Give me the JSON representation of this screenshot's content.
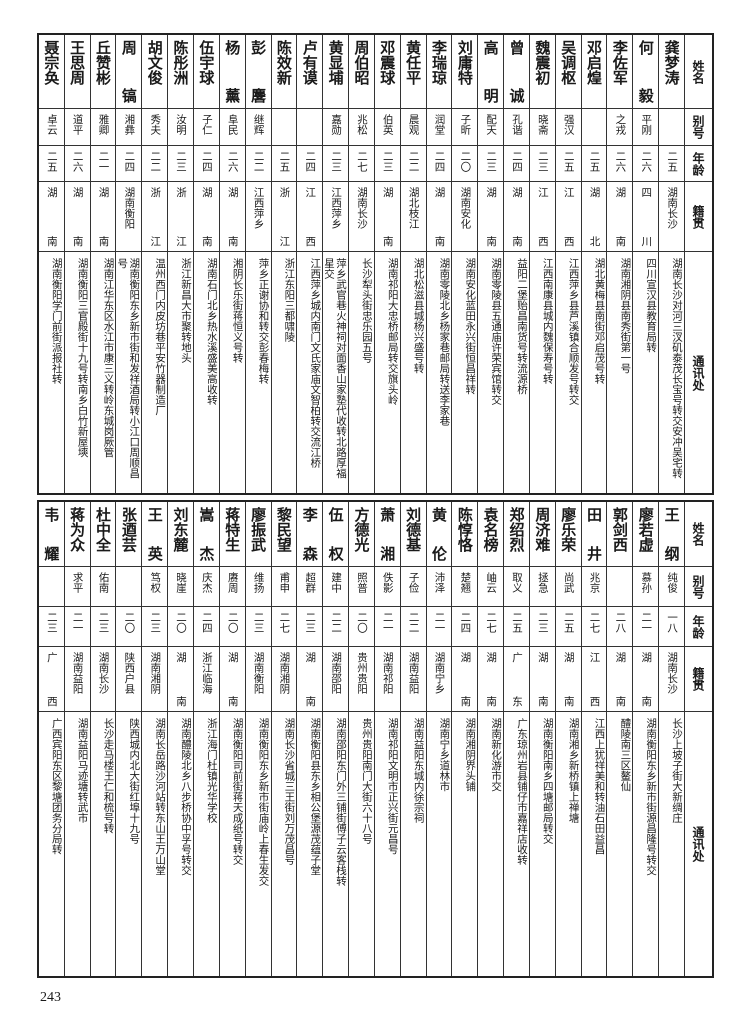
{
  "headers": {
    "name": "姓名",
    "alias": "别号",
    "age": "年龄",
    "origin": "籍贯",
    "address": "通讯处"
  },
  "tables": [
    {
      "rows": [
        {
          "name": "龚梦涛",
          "alias": "",
          "age": "二五",
          "origin": "湖南长沙",
          "address": "湖南长沙对河三汊矶泰茂长宝号转交安冲吴宅转"
        },
        {
          "name": "何毅",
          "alias": "平刚",
          "age": "二六",
          "origin": "四川",
          "address": "四川宣汉县教育局转"
        },
        {
          "name": "李佐军",
          "alias": "之戎",
          "age": "二六",
          "origin": "湖南",
          "address": "湖南湘阴县南秀街第一号"
        },
        {
          "name": "邓启煌",
          "alias": "",
          "age": "二五",
          "origin": "湖北",
          "address": "湖北黄梅县南街邓启茂号转"
        },
        {
          "name": "吴调枢",
          "alias": "强汉",
          "age": "二五",
          "origin": "江西",
          "address": "江西萍乡县芦溪镇合顺发号转交"
        },
        {
          "name": "魏震初",
          "alias": "晓斋",
          "age": "二三",
          "origin": "江西",
          "address": "江西南康县城内魏保寿号转"
        },
        {
          "name": "曾诚",
          "alias": "孔谐",
          "age": "二四",
          "origin": "湖南",
          "address": "益阳二堡贻昌南货号转流源桥"
        },
        {
          "name": "高明",
          "alias": "配天",
          "age": "二三",
          "origin": "湖南",
          "address": "湖南零陵县五通庙许荣宾馆转交"
        },
        {
          "name": "刘庸特",
          "alias": "子昕",
          "age": "二〇",
          "origin": "湖南安化",
          "address": "湖南安化蓝田永兴街恒昌祥转"
        },
        {
          "name": "李瑞琼",
          "alias": "润堂",
          "age": "二四",
          "origin": "湖南",
          "address": "湖南零陵北乡杨家巷邮局转送李家巷"
        },
        {
          "name": "黄任平",
          "alias": "晨观",
          "age": "二二",
          "origin": "湖北枝江",
          "address": "湖北松滋县城杨兴盛号转"
        },
        {
          "name": "邓震球",
          "alias": "伯英",
          "age": "二三",
          "origin": "湖南",
          "address": "湖南祁阳大忠桥邮局转交旗头岭"
        },
        {
          "name": "周伯昭",
          "alias": "兆松",
          "age": "二七",
          "origin": "湖南长沙",
          "address": "长沙犁头街忠乐园五号"
        },
        {
          "name": "黄显埔",
          "alias": "嘉勋",
          "age": "二三",
          "origin": "江西萍乡",
          "address": "萍乡武官巷火神祠对面香山家塾代收转北路厚福星交"
        },
        {
          "name": "卢有谟",
          "alias": "",
          "age": "二四",
          "origin": "江西",
          "address": "江西萍乡城内南门文氏家庙文智柏转交流江桥"
        },
        {
          "name": "陈效新",
          "alias": "",
          "age": "二五",
          "origin": "浙江",
          "address": "浙江东阳三都啸陵"
        },
        {
          "name": "彭麐",
          "alias": "继辉",
          "age": "二二",
          "origin": "江西萍乡",
          "address": "萍乡正谢协和转交彭春梅转"
        },
        {
          "name": "杨薰",
          "alias": "阜民",
          "age": "二六",
          "origin": "湖南",
          "address": "湘阴长乐街蒋恒义号转"
        },
        {
          "name": "伍宇球",
          "alias": "子仁",
          "age": "二四",
          "origin": "湖南",
          "address": "湖南石门北乡热水溪盛美高收转"
        },
        {
          "name": "陈彤洲",
          "alias": "汝明",
          "age": "二三",
          "origin": "浙江",
          "address": "浙江新昌大市聚转地头"
        },
        {
          "name": "胡文俊",
          "alias": "秀夫",
          "age": "二二",
          "origin": "浙江",
          "address": "温州西门内皮坊巷平安竹器制造厂"
        },
        {
          "name": "周镐",
          "alias": "湘彝",
          "age": "二四",
          "origin": "湖南衡阳",
          "address": "湖南衡阳东乡新市街和发祥酒局转小江口周顺昌号"
        },
        {
          "name": "丘赞彬",
          "alias": "雅卿",
          "age": "二一",
          "origin": "湖南",
          "address": "湖南江华东区水江市康三义转岭东城岗厥管"
        },
        {
          "name": "王思周",
          "alias": "道平",
          "age": "二六",
          "origin": "湖南",
          "address": "湖南衡阳三官殿街十九号转南乡白竹新屋塽"
        },
        {
          "name": "聂宗奂",
          "alias": "卓云",
          "age": "二五",
          "origin": "湖南",
          "address": "湖南衡阳学门前街派报社转"
        }
      ]
    },
    {
      "rows": [
        {
          "name": "王纲",
          "alias": "纯俊",
          "age": "一八",
          "origin": "湖南长沙",
          "address": "长沙上坡子街大新绸庄"
        },
        {
          "name": "廖若虚",
          "alias": "慕孙",
          "age": "二一",
          "origin": "湖南",
          "address": "湖南衡阳东乡新市街源昌隆号转交"
        },
        {
          "name": "郭剑西",
          "alias": "",
          "age": "二八",
          "origin": "湖南",
          "address": "醴陵南三区鳌仙"
        },
        {
          "name": "田井",
          "alias": "兆京",
          "age": "二七",
          "origin": "江西",
          "address": "江西上犹祥美和转油石田益昌"
        },
        {
          "name": "廖乐荣",
          "alias": "尚武",
          "age": "二五",
          "origin": "湖南",
          "address": "湖南湘乡新桥镇上禅塘"
        },
        {
          "name": "周济难",
          "alias": "拯急",
          "age": "二三",
          "origin": "湖南",
          "address": "湖南衡阳南乡四塘邮局转交"
        },
        {
          "name": "郑绍烈",
          "alias": "取义",
          "age": "二五",
          "origin": "广东",
          "address": "广东琼州岩县铺仔市嘉祥店收转"
        },
        {
          "name": "袁名榜",
          "alias": "岫云",
          "age": "二七",
          "origin": "湖南",
          "address": "湖南新化游市交"
        },
        {
          "name": "陈惇恪",
          "alias": "楚翘",
          "age": "二四",
          "origin": "湖南",
          "address": "湖南湘阴界头铺"
        },
        {
          "name": "黄伦",
          "alias": "沛泽",
          "age": "二一",
          "origin": "湖南宁乡",
          "address": "湖南宁乡道林市"
        },
        {
          "name": "刘德基",
          "alias": "子俭",
          "age": "二二",
          "origin": "湖南益阳",
          "address": "湖南益阳东城内徐宗祠"
        },
        {
          "name": "萧湘",
          "alias": "佚影",
          "age": "二一",
          "origin": "湖南祁阳",
          "address": "湖南祁阳文明市正兴街元昌号"
        },
        {
          "name": "方德光",
          "alias": "照普",
          "age": "二〇",
          "origin": "贵州贵阳",
          "address": "贵州贵阳南门大街六十八号"
        },
        {
          "name": "伍权",
          "alias": "建中",
          "age": "二二",
          "origin": "湖南邵阳",
          "address": "湖南邵阳东门外三铺街傅子云客栈转"
        },
        {
          "name": "李森",
          "alias": "超群",
          "age": "二三",
          "origin": "湖南",
          "address": "湖南衡阳县东乡相公堡源茂蕴子堂"
        },
        {
          "name": "黎民望",
          "alias": "甫申",
          "age": "二七",
          "origin": "湖南湘阴",
          "address": "湖南长沙省城三王街刘万茂昌号"
        },
        {
          "name": "廖振武",
          "alias": "维扬",
          "age": "二三",
          "origin": "湖南衡阳",
          "address": "湖南衡阳东乡新市街庙岭上春生发交"
        },
        {
          "name": "蒋特生",
          "alias": "赓周",
          "age": "二〇",
          "origin": "湖南",
          "address": "湖南衡阳司前街蒋天成纸号转交"
        },
        {
          "name": "嵩杰",
          "alias": "庆杰",
          "age": "二四",
          "origin": "浙江临海",
          "address": "浙江海门杜镇光华学校"
        },
        {
          "name": "刘东麓",
          "alias": "晓崖",
          "age": "二〇",
          "origin": "湖南",
          "address": "湖南醴陵北乡八步桥协中孚号转交"
        },
        {
          "name": "王英",
          "alias": "笃权",
          "age": "二三",
          "origin": "湖南湘阴",
          "address": "湖南长岳路沙河站转东山王万山堂"
        },
        {
          "name": "张逎芸",
          "alias": "",
          "age": "二〇",
          "origin": "陕西户县",
          "address": "陕西城内北大街红埠十九号"
        },
        {
          "name": "杜中全",
          "alias": "佑南",
          "age": "二三",
          "origin": "湖南长沙",
          "address": "长沙走马楼王仁和梳号转"
        },
        {
          "name": "蒋为众",
          "alias": "求平",
          "age": "二一",
          "origin": "湖南益阳",
          "address": "湖南益阳马迹塘转武市"
        },
        {
          "name": "韦耀",
          "alias": "",
          "age": "二三",
          "origin": "广西",
          "address": "广西宾阳东区黎塘团务分局转"
        }
      ]
    }
  ],
  "page_number": "243"
}
